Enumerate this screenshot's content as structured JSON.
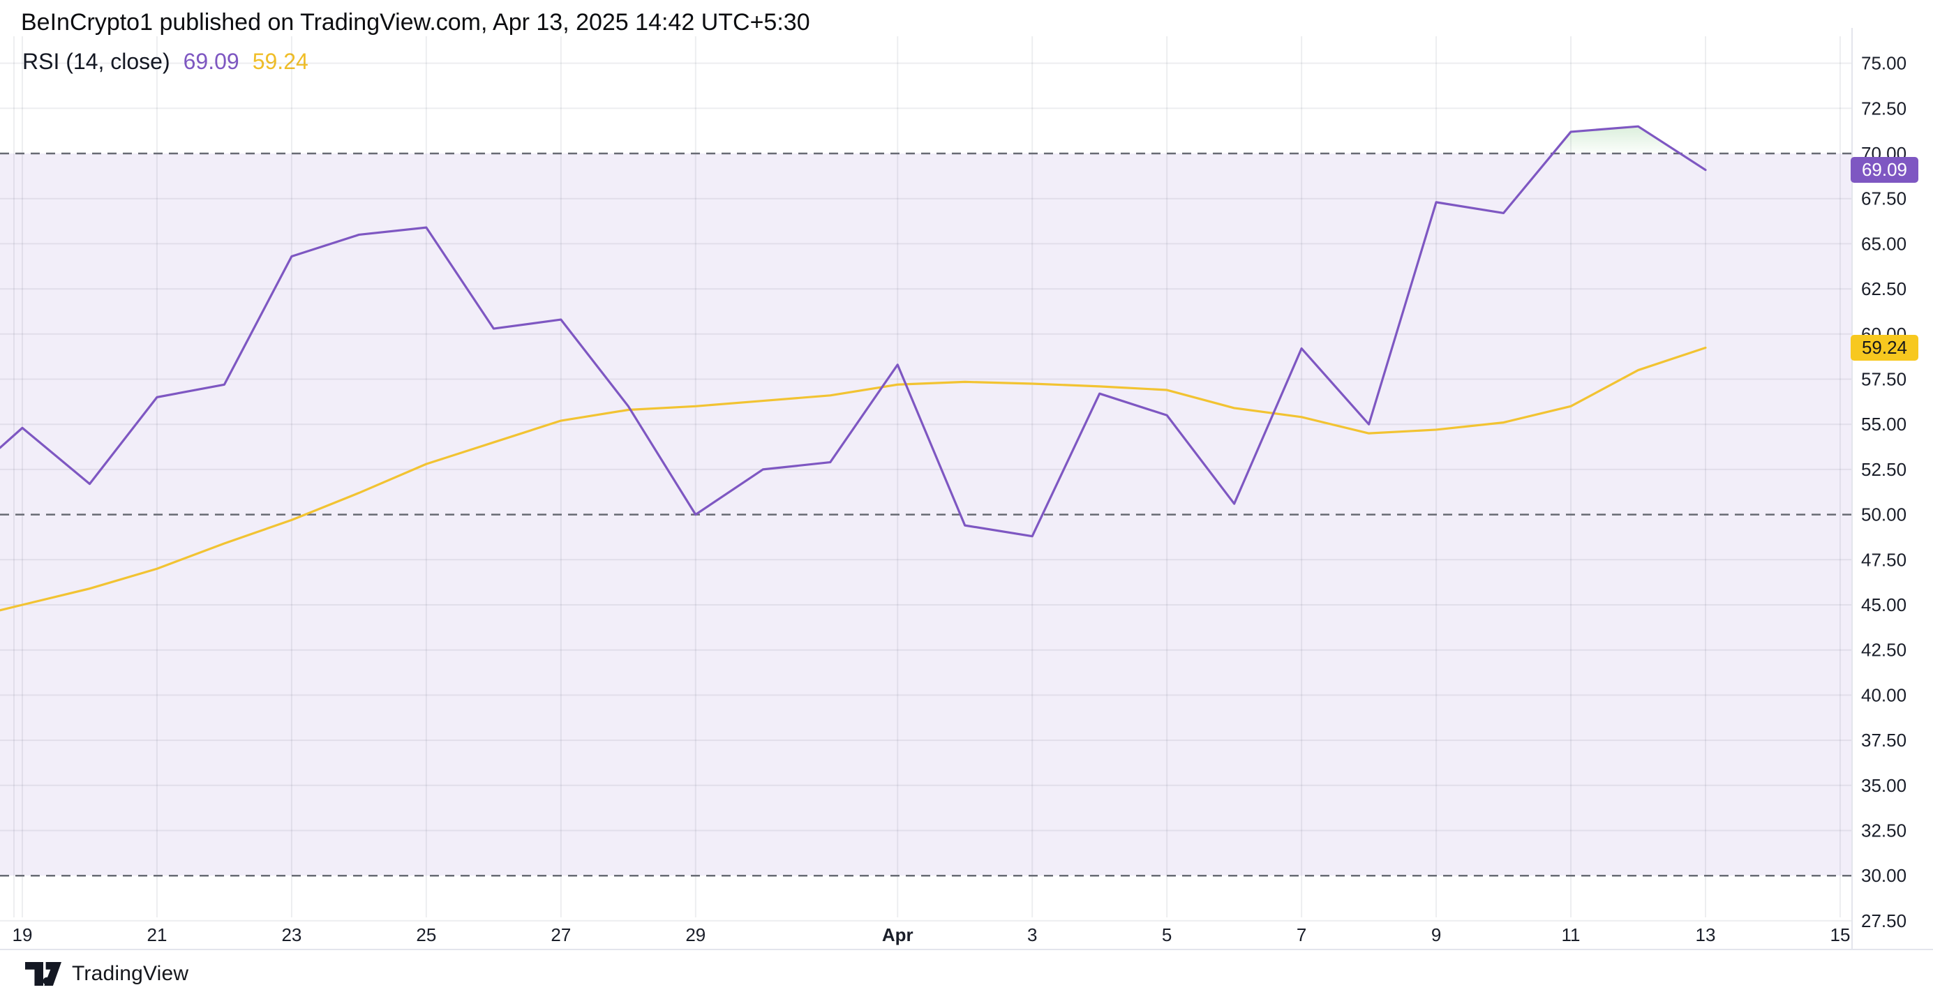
{
  "header": {
    "title": "BeInCrypto1 published on TradingView.com, Apr 13, 2025 14:42 UTC+5:30"
  },
  "legend": {
    "label": "RSI (14, close)",
    "rsi_value": "69.09",
    "ma_value": "59.24"
  },
  "footer": {
    "brand": "TradingView"
  },
  "colors": {
    "rsi_line": "#7E57C2",
    "ma_line": "#F2C332",
    "rsi_badge": "#7E57C2",
    "ma_badge": "#F7C81F",
    "band_fill": "rgba(126,87,194,0.10)",
    "overbought_fill_top": "rgba(76,175,80,0.20)",
    "overbought_fill_bottom": "rgba(76,175,80,0.02)",
    "grid": "rgba(80,86,108,0.10)",
    "dashed_guide": "#686B74",
    "separator": "#E3E5EC",
    "axis_text": "#1A1E29",
    "logo": "#141823"
  },
  "chart_data": {
    "type": "line",
    "title": "RSI (14, close)",
    "x_dates": [
      "Mar 19",
      "Mar 20",
      "Mar 21",
      "Mar 22",
      "Mar 23",
      "Mar 24",
      "Mar 25",
      "Mar 26",
      "Mar 27",
      "Mar 28",
      "Mar 29",
      "Mar 30",
      "Mar 31",
      "Apr 1",
      "Apr 2",
      "Apr 3",
      "Apr 4",
      "Apr 5",
      "Apr 6",
      "Apr 7",
      "Apr 8",
      "Apr 9",
      "Apr 10",
      "Apr 11",
      "Apr 12",
      "Apr 13"
    ],
    "series": [
      {
        "name": "RSI",
        "values": [
          54.8,
          51.7,
          56.5,
          57.2,
          64.3,
          65.5,
          65.9,
          60.3,
          60.8,
          56.0,
          50.0,
          52.5,
          52.9,
          58.3,
          49.4,
          48.8,
          56.7,
          55.5,
          50.6,
          59.2,
          55.0,
          67.3,
          66.7,
          71.2,
          71.5,
          69.09
        ]
      },
      {
        "name": "RSI-based MA",
        "values": [
          45.0,
          45.9,
          47.0,
          48.4,
          49.7,
          51.2,
          52.8,
          54.0,
          55.2,
          55.8,
          56.0,
          56.3,
          56.6,
          57.2,
          57.35,
          57.25,
          57.1,
          56.9,
          55.9,
          55.4,
          54.5,
          54.7,
          55.1,
          56.0,
          58.0,
          59.24
        ]
      }
    ],
    "left_edge": {
      "rsi": 53.7,
      "ma": 44.7
    },
    "last_values": {
      "rsi": "69.09",
      "ma": "59.24"
    },
    "y_axis": {
      "min": 27.5,
      "max": 75.0,
      "step": 2.5,
      "labels": [
        "75.00",
        "72.50",
        "70.00",
        "67.50",
        "65.00",
        "62.50",
        "60.00",
        "57.50",
        "55.00",
        "52.50",
        "50.00",
        "47.50",
        "45.00",
        "42.50",
        "40.00",
        "37.50",
        "35.00",
        "32.50",
        "30.00",
        "27.50"
      ]
    },
    "x_ticks": [
      {
        "i": 0,
        "label": "19"
      },
      {
        "i": 2,
        "label": "21"
      },
      {
        "i": 4,
        "label": "23"
      },
      {
        "i": 6,
        "label": "25"
      },
      {
        "i": 8,
        "label": "27"
      },
      {
        "i": 10,
        "label": "29"
      },
      {
        "i": 13,
        "label": "Apr",
        "bold": true
      },
      {
        "i": 15,
        "label": "3"
      },
      {
        "i": 17,
        "label": "5"
      },
      {
        "i": 19,
        "label": "7"
      },
      {
        "i": 21,
        "label": "9"
      },
      {
        "i": 23,
        "label": "11"
      },
      {
        "i": 25,
        "label": "13"
      },
      {
        "i": 27,
        "label": "15"
      }
    ],
    "guides": [
      70,
      50,
      30
    ],
    "band": [
      30,
      70
    ],
    "grid_on": true,
    "legend_position": "top-left"
  }
}
